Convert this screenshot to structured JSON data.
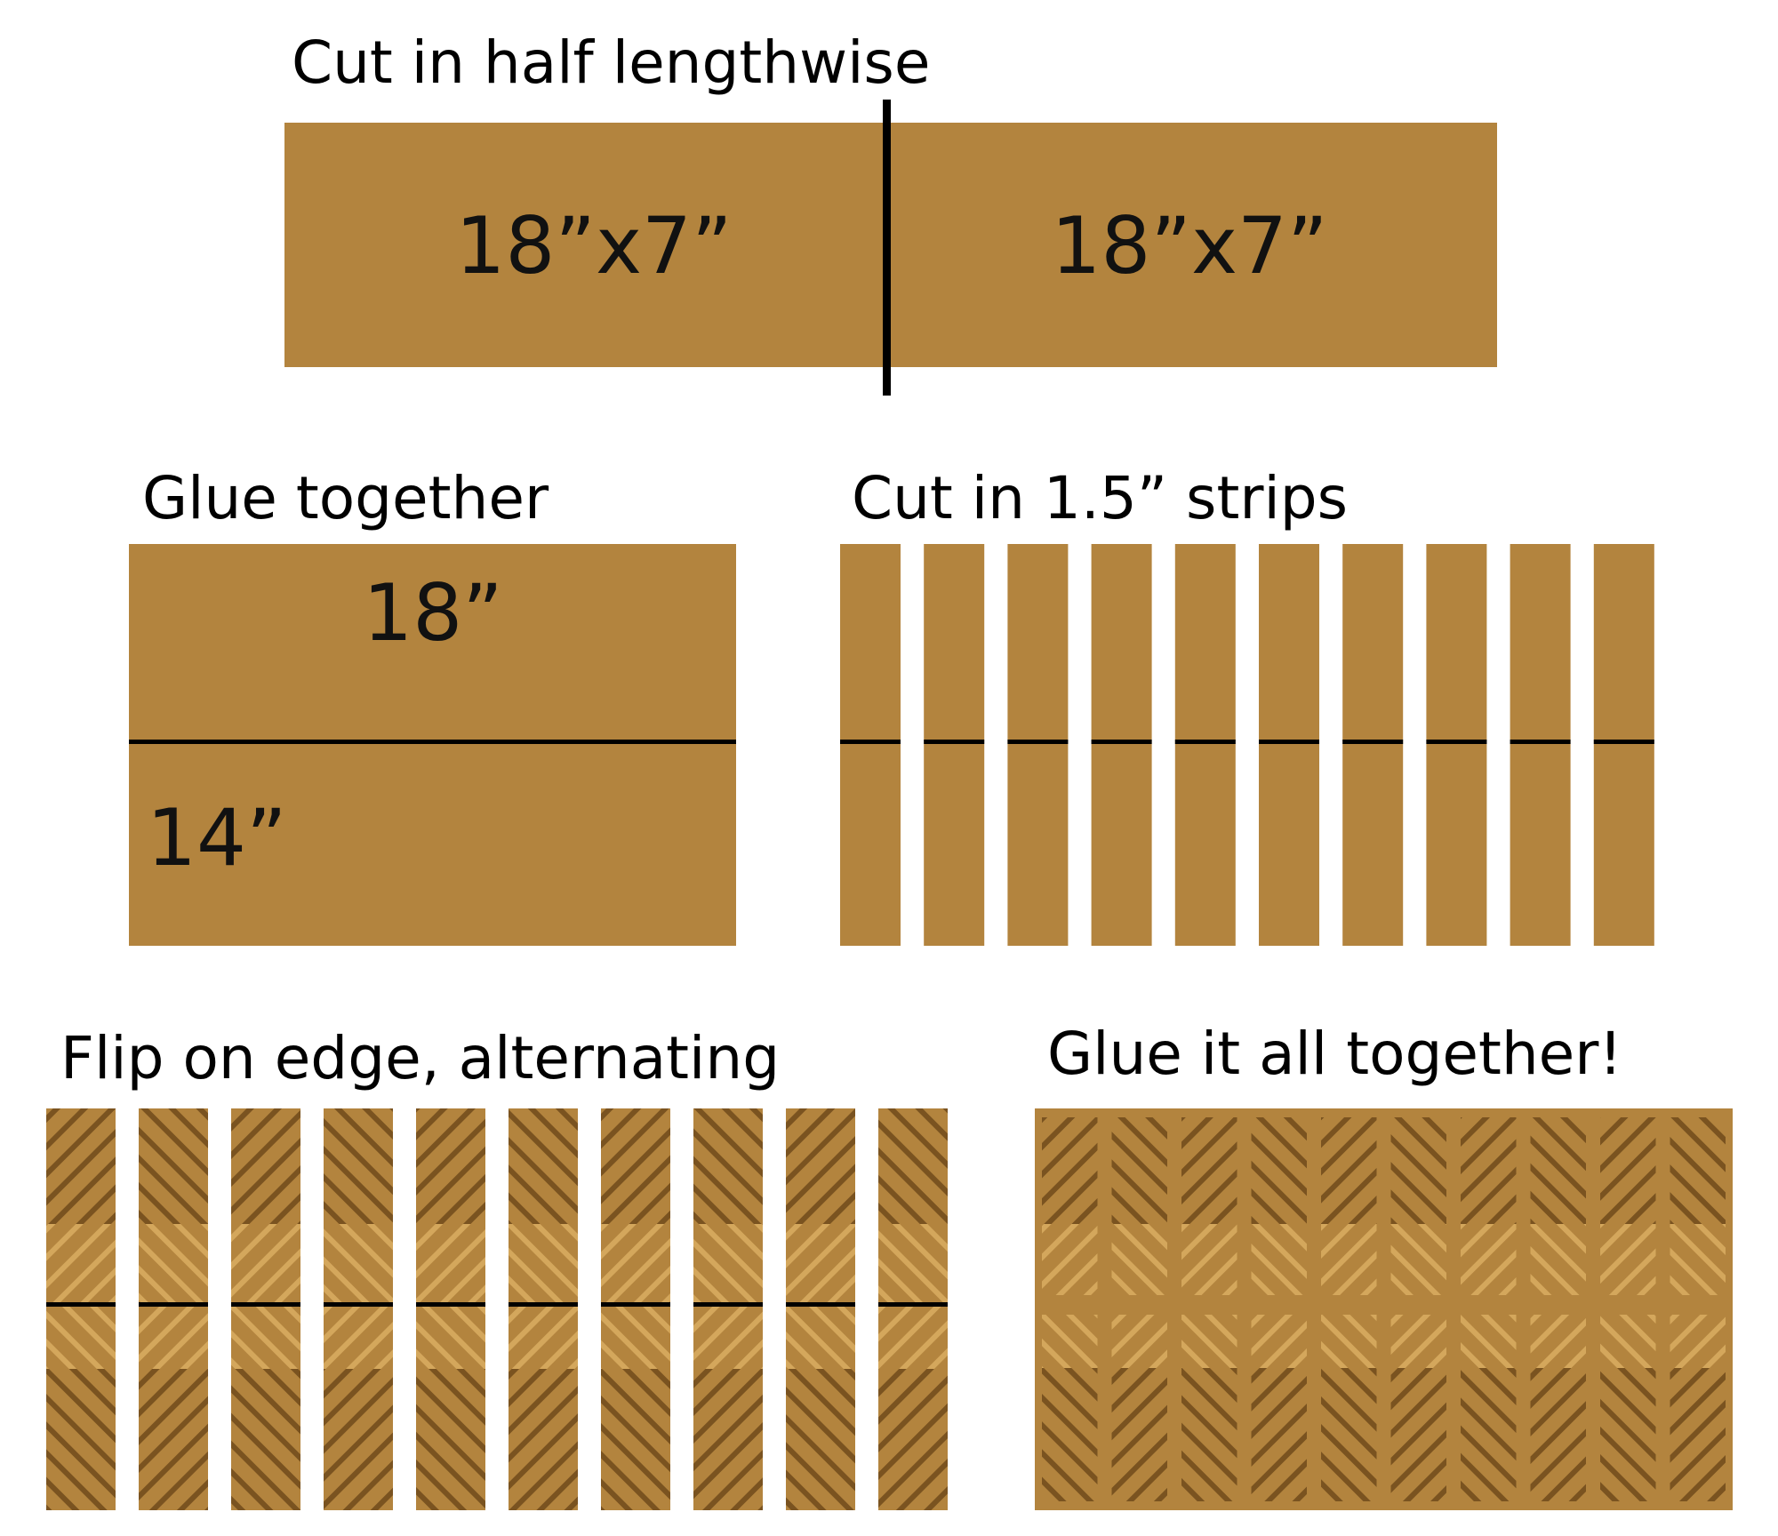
{
  "colors": {
    "wood": "#b3843e",
    "grain_dark": "#7a5320",
    "grain_light": "#d4a75c",
    "line": "#000000"
  },
  "step1": {
    "title": "Cut in half lengthwise",
    "left_label": "18”x7”",
    "right_label": "18”x7”"
  },
  "step2": {
    "title": "Glue together",
    "top_label": "18”",
    "bottom_label": "14”"
  },
  "step3": {
    "title": "Cut in 1.5” strips",
    "strip_count": 10
  },
  "step4": {
    "title": "Flip on edge, alternating",
    "strip_count": 10
  },
  "step5": {
    "title": "Glue it all together!",
    "column_count": 10
  }
}
